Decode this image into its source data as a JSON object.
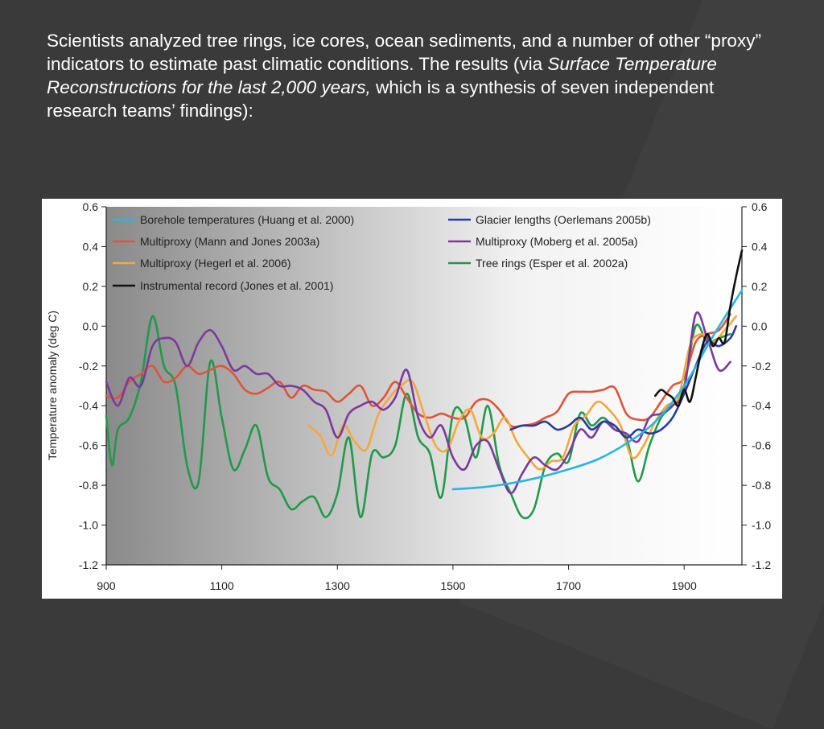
{
  "slide": {
    "text_part1": "Scientists analyzed tree rings, ice cores, ocean sediments, and a number of other “proxy” indicators to estimate past climatic conditions. The results (via ",
    "text_italic": "Surface Temperature Reconstructions for the last 2,000 years,",
    "text_part2": " which is a synthesis of seven independent research teams’ findings):"
  },
  "chart_data": {
    "type": "line",
    "title": "",
    "xlabel": "",
    "ylabel": "Temperature anomaly (deg C)",
    "xlim": [
      900,
      2000
    ],
    "ylim": [
      -1.2,
      0.6
    ],
    "x_ticks": [
      900,
      1100,
      1300,
      1500,
      1700,
      1900
    ],
    "y_ticks": [
      -1.2,
      -1.0,
      -0.8,
      -0.6,
      -0.4,
      -0.2,
      0.0,
      0.2,
      0.4,
      0.6
    ],
    "y_tick_labels_left": [
      "-1.2",
      "-1.0",
      "-0.8",
      "-0.6",
      "-0.4",
      "-0.2",
      "0.0",
      "0.2",
      "0.4",
      "0.6"
    ],
    "y_tick_labels_right": [
      "-1.2",
      "-1.0",
      "-0.8",
      "-0.6",
      "-0.4",
      "-0.2",
      "0.0",
      "0.2",
      "0.4",
      "0.6"
    ],
    "x_tick_labels": [
      "900",
      "1100",
      "1300",
      "1500",
      "1700",
      "1900"
    ],
    "legend_position": "top",
    "series": [
      {
        "name": "Borehole temperatures (Huang et al. 2000)",
        "color": "#29b6e0",
        "x": [
          1500,
          1550,
          1600,
          1650,
          1700,
          1750,
          1800,
          1850,
          1900,
          1950,
          2000
        ],
        "y": [
          -0.82,
          -0.81,
          -0.79,
          -0.76,
          -0.72,
          -0.67,
          -0.59,
          -0.48,
          -0.3,
          -0.05,
          0.18
        ]
      },
      {
        "name": "Multiproxy (Mann and Jones 2003a)",
        "color": "#e0543a",
        "x": [
          900,
          920,
          940,
          960,
          980,
          1000,
          1020,
          1040,
          1060,
          1080,
          1100,
          1120,
          1140,
          1160,
          1180,
          1200,
          1220,
          1240,
          1260,
          1280,
          1300,
          1320,
          1340,
          1360,
          1380,
          1400,
          1420,
          1440,
          1460,
          1480,
          1500,
          1520,
          1540,
          1560,
          1580,
          1600,
          1620,
          1640,
          1660,
          1680,
          1700,
          1720,
          1740,
          1760,
          1780,
          1800,
          1820,
          1840,
          1860,
          1880,
          1900,
          1920,
          1940,
          1960,
          1980
        ],
        "y": [
          -0.35,
          -0.36,
          -0.28,
          -0.24,
          -0.2,
          -0.28,
          -0.26,
          -0.2,
          -0.24,
          -0.22,
          -0.2,
          -0.24,
          -0.32,
          -0.34,
          -0.31,
          -0.28,
          -0.36,
          -0.3,
          -0.32,
          -0.33,
          -0.38,
          -0.34,
          -0.3,
          -0.4,
          -0.36,
          -0.28,
          -0.36,
          -0.44,
          -0.46,
          -0.44,
          -0.46,
          -0.46,
          -0.38,
          -0.37,
          -0.42,
          -0.5,
          -0.5,
          -0.49,
          -0.46,
          -0.43,
          -0.34,
          -0.33,
          -0.33,
          -0.32,
          -0.31,
          -0.44,
          -0.47,
          -0.46,
          -0.38,
          -0.3,
          -0.26,
          -0.08,
          -0.04,
          -0.02,
          0.06
        ]
      },
      {
        "name": "Multiproxy (Hegerl et al. 2006)",
        "color": "#f5a83a",
        "x": [
          1250,
          1270,
          1290,
          1310,
          1330,
          1350,
          1370,
          1390,
          1410,
          1430,
          1450,
          1470,
          1490,
          1510,
          1530,
          1550,
          1570,
          1590,
          1610,
          1630,
          1650,
          1670,
          1690,
          1710,
          1730,
          1750,
          1770,
          1790,
          1810,
          1830,
          1850,
          1870,
          1890,
          1910,
          1930,
          1950,
          1970,
          1990
        ],
        "y": [
          -0.5,
          -0.55,
          -0.65,
          -0.5,
          -0.58,
          -0.62,
          -0.45,
          -0.36,
          -0.3,
          -0.28,
          -0.44,
          -0.6,
          -0.62,
          -0.48,
          -0.42,
          -0.56,
          -0.54,
          -0.46,
          -0.58,
          -0.66,
          -0.72,
          -0.68,
          -0.66,
          -0.5,
          -0.45,
          -0.38,
          -0.42,
          -0.5,
          -0.66,
          -0.6,
          -0.48,
          -0.4,
          -0.36,
          -0.1,
          -0.04,
          -0.08,
          -0.02,
          0.05
        ]
      },
      {
        "name": "Instrumental record (Jones et al. 2001)",
        "color": "#111111",
        "x": [
          1850,
          1860,
          1870,
          1880,
          1890,
          1900,
          1910,
          1920,
          1930,
          1940,
          1950,
          1960,
          1970,
          1980,
          1990,
          2000
        ],
        "y": [
          -0.35,
          -0.32,
          -0.34,
          -0.36,
          -0.4,
          -0.32,
          -0.38,
          -0.26,
          -0.12,
          -0.04,
          -0.1,
          -0.06,
          -0.08,
          0.1,
          0.25,
          0.38
        ]
      },
      {
        "name": "Glacier lengths (Oerlemans 2005b)",
        "color": "#2a3a9c",
        "x": [
          1600,
          1620,
          1640,
          1660,
          1680,
          1700,
          1720,
          1740,
          1760,
          1780,
          1800,
          1820,
          1840,
          1860,
          1880,
          1900,
          1920,
          1940,
          1960,
          1980,
          1990
        ],
        "y": [
          -0.52,
          -0.5,
          -0.5,
          -0.48,
          -0.52,
          -0.5,
          -0.46,
          -0.52,
          -0.48,
          -0.5,
          -0.56,
          -0.52,
          -0.54,
          -0.52,
          -0.46,
          -0.34,
          -0.2,
          -0.08,
          -0.1,
          -0.06,
          0.0
        ]
      },
      {
        "name": "Multiproxy (Moberg et al. 2005a)",
        "color": "#7b3a9c",
        "x": [
          900,
          920,
          940,
          960,
          980,
          1000,
          1020,
          1040,
          1060,
          1080,
          1100,
          1120,
          1140,
          1160,
          1180,
          1200,
          1220,
          1240,
          1260,
          1280,
          1300,
          1320,
          1340,
          1360,
          1380,
          1400,
          1420,
          1440,
          1460,
          1480,
          1500,
          1520,
          1540,
          1560,
          1580,
          1600,
          1620,
          1640,
          1660,
          1680,
          1700,
          1720,
          1740,
          1760,
          1780,
          1800,
          1820,
          1840,
          1860,
          1880,
          1900,
          1920,
          1940,
          1960,
          1980
        ],
        "y": [
          -0.28,
          -0.4,
          -0.26,
          -0.3,
          -0.1,
          -0.06,
          -0.08,
          -0.2,
          -0.08,
          -0.02,
          -0.1,
          -0.22,
          -0.2,
          -0.24,
          -0.24,
          -0.3,
          -0.3,
          -0.32,
          -0.38,
          -0.42,
          -0.56,
          -0.44,
          -0.4,
          -0.38,
          -0.42,
          -0.36,
          -0.22,
          -0.46,
          -0.56,
          -0.5,
          -0.66,
          -0.72,
          -0.6,
          -0.58,
          -0.72,
          -0.84,
          -0.74,
          -0.66,
          -0.7,
          -0.72,
          -0.64,
          -0.52,
          -0.56,
          -0.48,
          -0.52,
          -0.54,
          -0.58,
          -0.46,
          -0.44,
          -0.4,
          -0.32,
          0.06,
          -0.06,
          -0.22,
          -0.18
        ]
      },
      {
        "name": "Tree rings (Esper et al. 2002a)",
        "color": "#1f9a4a",
        "x": [
          900,
          910,
          920,
          940,
          960,
          980,
          1000,
          1020,
          1040,
          1060,
          1080,
          1100,
          1120,
          1140,
          1160,
          1180,
          1200,
          1220,
          1240,
          1260,
          1280,
          1300,
          1320,
          1340,
          1360,
          1380,
          1400,
          1420,
          1440,
          1460,
          1480,
          1500,
          1520,
          1540,
          1560,
          1580,
          1600,
          1620,
          1640,
          1660,
          1680,
          1700,
          1720,
          1740,
          1760,
          1780,
          1800,
          1820,
          1840,
          1860,
          1880,
          1900,
          1920,
          1940,
          1960,
          1980
        ],
        "y": [
          -0.45,
          -0.7,
          -0.52,
          -0.46,
          -0.28,
          0.05,
          -0.2,
          -0.3,
          -0.7,
          -0.78,
          -0.18,
          -0.46,
          -0.72,
          -0.62,
          -0.5,
          -0.76,
          -0.82,
          -0.92,
          -0.88,
          -0.86,
          -0.96,
          -0.84,
          -0.56,
          -0.96,
          -0.64,
          -0.66,
          -0.6,
          -0.34,
          -0.56,
          -0.64,
          -0.86,
          -0.44,
          -0.46,
          -0.66,
          -0.4,
          -0.7,
          -0.84,
          -0.96,
          -0.92,
          -0.7,
          -0.64,
          -0.68,
          -0.44,
          -0.5,
          -0.46,
          -0.52,
          -0.56,
          -0.78,
          -0.6,
          -0.46,
          -0.4,
          -0.3,
          0.0,
          -0.08,
          -0.06,
          -0.04
        ]
      }
    ]
  }
}
